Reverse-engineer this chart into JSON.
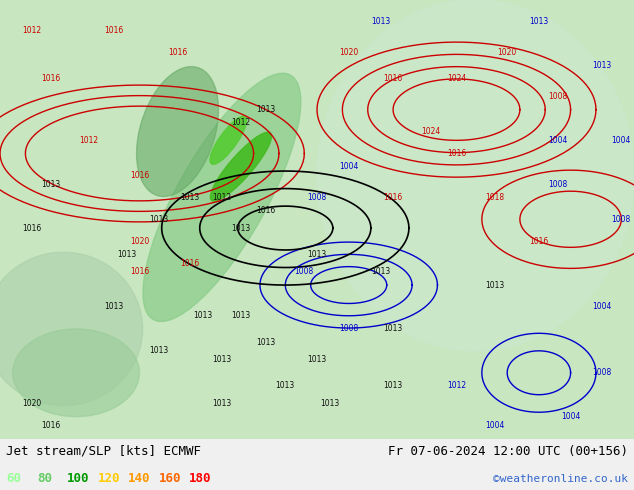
{
  "title_left": "Jet stream/SLP [kts] ECMWF",
  "title_right": "Fr 07-06-2024 12:00 UTC (00+156)",
  "copyright": "©weatheronline.co.uk",
  "legend_values": [
    60,
    80,
    100,
    120,
    140,
    160,
    180
  ],
  "legend_colors": [
    "#99ff99",
    "#66cc66",
    "#009900",
    "#ffcc00",
    "#ff9900",
    "#ff6600",
    "#ff0000"
  ],
  "bg_color": "#e8f4e8",
  "fig_width": 6.34,
  "fig_height": 4.9,
  "dpi": 100,
  "map_bg_colors": {
    "land_light": "#c8e6c8",
    "land_mid": "#a0d0a0",
    "sea": "#d0e8f0",
    "highlight_green": "#66cc44"
  },
  "contour_colors": {
    "high_pressure": "#cc0000",
    "low_pressure": "#0000cc",
    "isobar_black": "#000000"
  },
  "bottom_bar_color": "#f0f0f0",
  "text_color": "#000000",
  "title_fontsize": 9,
  "legend_fontsize": 9,
  "copyright_color": "#3366cc",
  "copyright_fontsize": 8
}
